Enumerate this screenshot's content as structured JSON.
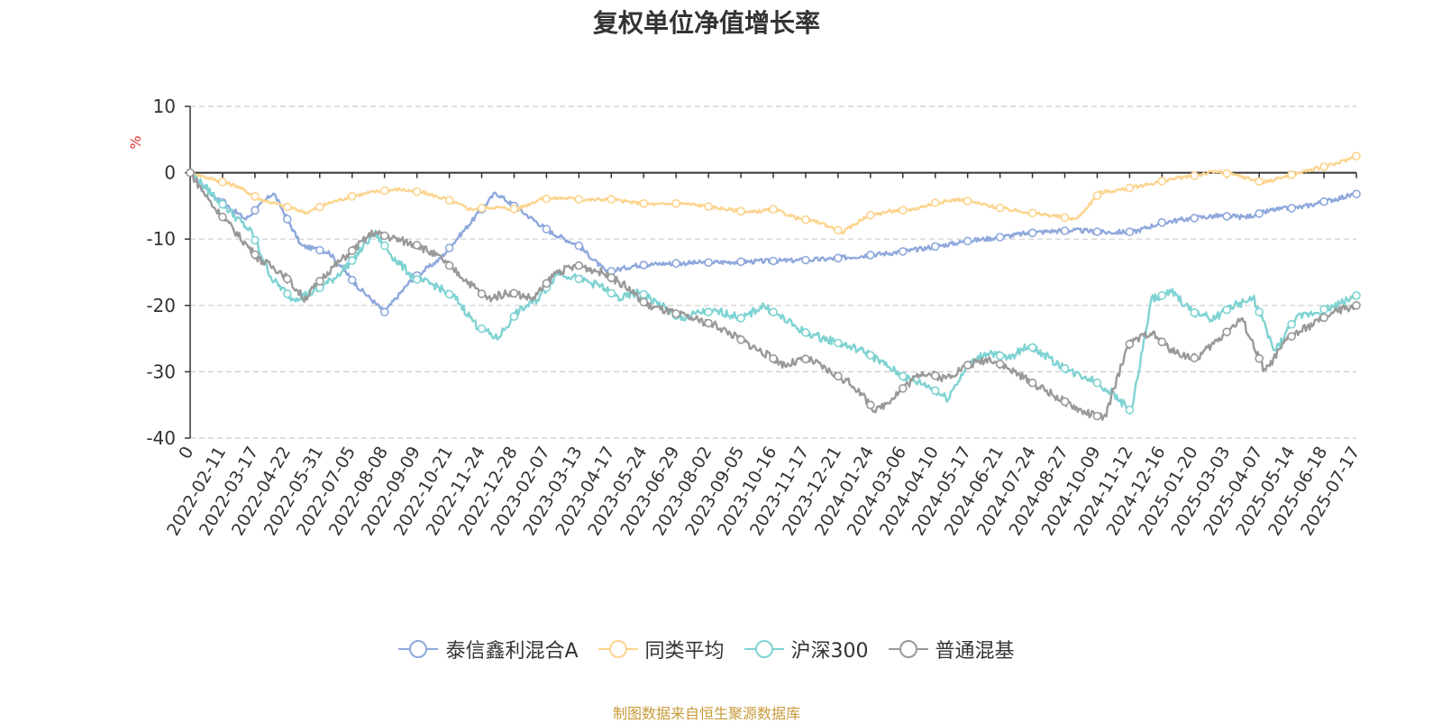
{
  "colors": {
    "series": [
      "#8ea8dc",
      "#fcd48e",
      "#7fd3d2",
      "#999999"
    ],
    "axis": "#333333",
    "grid": "#cccccc",
    "ylabel": "#e03030",
    "source": "#c89a3a"
  },
  "chart_data": {
    "type": "line",
    "title": "复权单位净值增长率",
    "ylabel": "%",
    "xlabel": "",
    "ylim": [
      -40,
      10
    ],
    "yticks": [
      10,
      0,
      -10,
      -20,
      -30,
      -40
    ],
    "grid": "dashed-horizontal",
    "legend_position": "bottom",
    "xticks": [
      "0",
      "2022-02-11",
      "2022-03-17",
      "2022-04-22",
      "2022-05-31",
      "2022-07-05",
      "2022-08-08",
      "2022-09-09",
      "2022-10-21",
      "2022-11-24",
      "2022-12-28",
      "2023-02-07",
      "2023-03-13",
      "2023-04-17",
      "2023-05-24",
      "2023-06-29",
      "2023-08-02",
      "2023-09-05",
      "2023-10-16",
      "2023-11-17",
      "2023-12-21",
      "2024-01-24",
      "2024-03-06",
      "2024-04-10",
      "2024-05-17",
      "2024-06-21",
      "2024-07-24",
      "2024-08-27",
      "2024-10-09",
      "2024-11-12",
      "2024-12-16",
      "2025-01-20",
      "2025-03-03",
      "2025-04-07",
      "2025-05-14",
      "2025-06-18",
      "2025-07-17"
    ],
    "series": [
      {
        "name": "泰信鑫利混合A",
        "values": [
          0,
          -4,
          -7,
          -3,
          -11,
          -12,
          -17,
          -21,
          -16,
          -13,
          -8,
          -3,
          -6,
          -9,
          -11,
          -15,
          -14,
          -13.7,
          -13.6,
          -13.5,
          -13.4,
          -13.3,
          -13.2,
          -13.0,
          -12.6,
          -12.2,
          -11.7,
          -11.0,
          -10.3,
          -9.8,
          -9.2,
          -8.8,
          -8.7,
          -9.0,
          -8.9,
          -7.5,
          -6.9,
          -6.5,
          -6.7,
          -5.6,
          -5.2,
          -4.2,
          -3.2
        ]
      },
      {
        "name": "同类平均",
        "values": [
          0,
          -1,
          -2,
          -4,
          -5,
          -6,
          -4.5,
          -3.5,
          -2.8,
          -2.5,
          -3,
          -4,
          -5.5,
          -5.2,
          -5.5,
          -4,
          -3.8,
          -4.1,
          -4.0,
          -4.5,
          -4.8,
          -4.6,
          -5.0,
          -5.5,
          -6,
          -5.5,
          -6.8,
          -7.5,
          -9,
          -6.5,
          -5.8,
          -5.5,
          -4.5,
          -4,
          -4.8,
          -5.5,
          -6,
          -6.5,
          -7,
          -3,
          -2.5,
          -1.8,
          -1,
          -0.5,
          0.2,
          -0.5,
          -1.5,
          -0.5,
          0.4,
          1.2,
          2.5
        ]
      },
      {
        "name": "沪深300",
        "values": [
          0,
          -3,
          -6,
          -9,
          -16,
          -19,
          -18,
          -16,
          -13,
          -9,
          -13,
          -16,
          -17,
          -19,
          -23,
          -25,
          -21,
          -19,
          -15,
          -16,
          -17,
          -19,
          -18,
          -20,
          -22,
          -21,
          -21,
          -22,
          -20,
          -22,
          -24,
          -25,
          -26,
          -27,
          -29,
          -31,
          -32,
          -34,
          -29,
          -27,
          -28,
          -26,
          -28,
          -30,
          -31,
          -33,
          -36,
          -19,
          -18,
          -21,
          -22,
          -20,
          -19,
          -27,
          -22,
          -21,
          -20,
          -18.5
        ]
      },
      {
        "name": "普通混基",
        "values": [
          0,
          -5,
          -9,
          -13,
          -15,
          -19,
          -15,
          -12,
          -9,
          -10,
          -11,
          -13,
          -16,
          -19,
          -18,
          -19,
          -15,
          -14,
          -15,
          -17,
          -20,
          -21,
          -22,
          -23,
          -25,
          -27,
          -29,
          -28,
          -30,
          -32,
          -36,
          -33,
          -30,
          -31,
          -29,
          -28,
          -30,
          -32,
          -34,
          -36,
          -37,
          -26,
          -24,
          -27,
          -28,
          -25,
          -22,
          -30,
          -25,
          -23,
          -21,
          -20
        ]
      }
    ]
  },
  "legend": {
    "items": [
      "泰信鑫利混合A",
      "同类平均",
      "沪深300",
      "普通混基"
    ]
  },
  "source_note": "制图数据来自恒生聚源数据库"
}
